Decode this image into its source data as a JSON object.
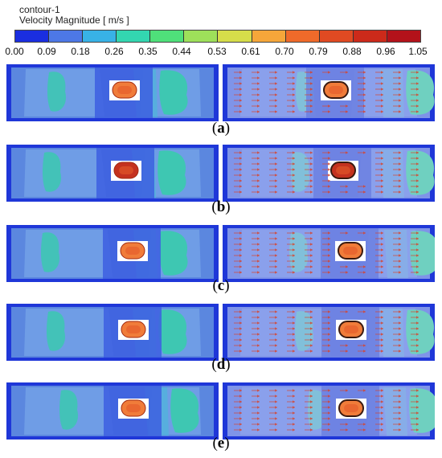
{
  "header": {
    "contour_name": "contour-1",
    "variable": "Velocity Magnitude [ m/s ]"
  },
  "colorbar": {
    "ticks": [
      "0.00",
      "0.09",
      "0.18",
      "0.26",
      "0.35",
      "0.44",
      "0.53",
      "0.61",
      "0.70",
      "0.79",
      "0.88",
      "0.96",
      "1.05"
    ],
    "colors": [
      "#1a2ee0",
      "#4d78e6",
      "#38b2e6",
      "#33d6b0",
      "#4fe07a",
      "#9ee05a",
      "#d6dd4a",
      "#f5a63a",
      "#ef6a2a",
      "#e04a22",
      "#cc2a1a",
      "#b3121a"
    ]
  },
  "rows": [
    {
      "open": "(",
      "letter": "a",
      "close": ")",
      "variant": "a"
    },
    {
      "open": "(",
      "letter": "b",
      "close": ")",
      "variant": "b"
    },
    {
      "open": "(",
      "letter": "c",
      "close": ")",
      "variant": "c"
    },
    {
      "open": "(",
      "letter": "d",
      "close": ")",
      "variant": "d"
    },
    {
      "open": "(",
      "letter": "e",
      "close": ")",
      "variant": "e"
    }
  ],
  "panel_colors": {
    "edge": "#1f37d8",
    "base": "#5b87df",
    "light": "#6f9de6",
    "cyan": "#48b9d8",
    "teal": "#3ec7b2",
    "green": "#55cf8a",
    "orange": "#f07c3a",
    "red": "#c4321f",
    "vector_bg": "#7f94e8",
    "arrow": "#d8432a"
  }
}
